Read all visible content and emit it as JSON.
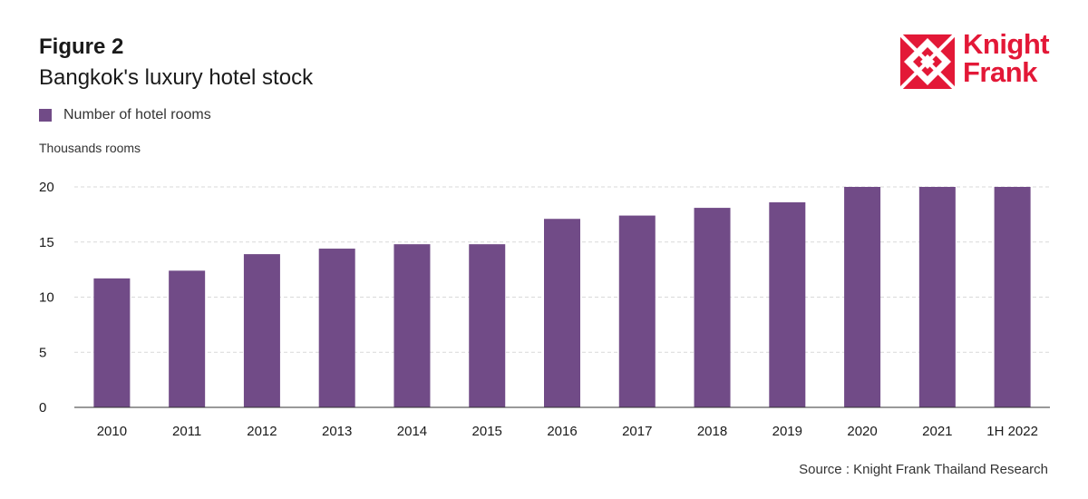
{
  "figure": {
    "label": "Figure 2",
    "title": "Bangkok's luxury hotel stock",
    "source": "Source : Knight Frank Thailand Research"
  },
  "logo": {
    "line1": "Knight",
    "line2": "Frank",
    "color": "#e31837"
  },
  "colors": {
    "bar": "#714b87",
    "grid": "#d9d9d9",
    "axis": "#333333"
  },
  "chart_data": {
    "type": "bar",
    "categories": [
      "2010",
      "2011",
      "2012",
      "2013",
      "2014",
      "2015",
      "2016",
      "2017",
      "2018",
      "2019",
      "2020",
      "2021",
      "1H 2022"
    ],
    "series": [
      {
        "name": "Number of hotel rooms",
        "values": [
          11.7,
          12.4,
          13.9,
          14.4,
          14.8,
          14.8,
          17.1,
          17.4,
          18.1,
          18.6,
          20.0,
          20.0,
          20.0
        ]
      }
    ],
    "xlabel": "",
    "ylabel": "Thousands rooms",
    "ylim": [
      0,
      20
    ],
    "yticks": [
      "0",
      "5",
      "10",
      "15",
      "20"
    ],
    "grid": true,
    "legend_position": "top-left"
  }
}
